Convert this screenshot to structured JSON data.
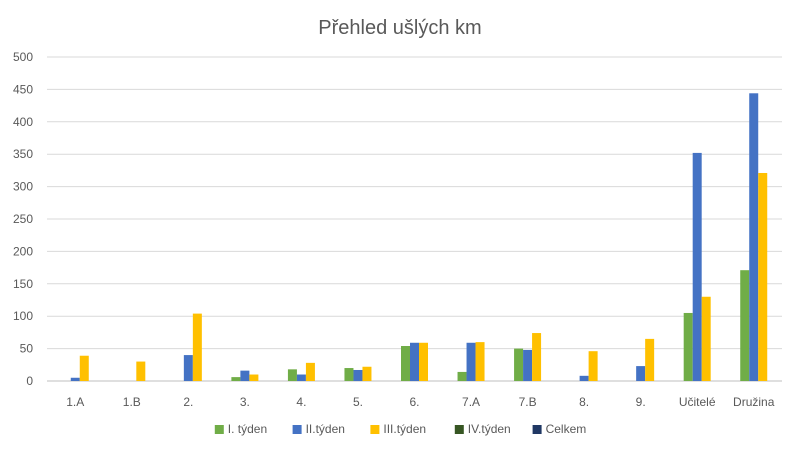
{
  "chart_data": {
    "type": "bar",
    "title": "Přehled ušlých km",
    "xlabel": "",
    "ylabel": "",
    "ylim": [
      0,
      500
    ],
    "yticks": [
      0,
      50,
      100,
      150,
      200,
      250,
      300,
      350,
      400,
      450,
      500
    ],
    "grid": true,
    "legend_position": "bottom",
    "categories": [
      "1.A",
      "1.B",
      "2.",
      "3.",
      "4.",
      "5.",
      "6.",
      "7.A",
      "7.B",
      "8.",
      "9.",
      "Učitelé",
      "Družina"
    ],
    "series": [
      {
        "name": "I. týden",
        "color": "#70ad47",
        "values": [
          0,
          0,
          0,
          6,
          18,
          20,
          54,
          14,
          50,
          0,
          0,
          105,
          171
        ]
      },
      {
        "name": "II.týden",
        "color": "#4472c4",
        "values": [
          5,
          0,
          40,
          16,
          10,
          17,
          59,
          59,
          48,
          8,
          23,
          352,
          444
        ]
      },
      {
        "name": "III.týden",
        "color": "#ffc000",
        "values": [
          39,
          30,
          104,
          10,
          28,
          22,
          59,
          60,
          74,
          46,
          65,
          130,
          321
        ]
      },
      {
        "name": "IV.týden",
        "color": "#375623",
        "values": [
          0,
          0,
          0,
          0,
          0,
          0,
          0,
          0,
          0,
          0,
          0,
          0,
          0
        ]
      },
      {
        "name": "Celkem",
        "color": "#203864",
        "values": [
          0,
          0,
          0,
          0,
          0,
          0,
          0,
          0,
          0,
          0,
          0,
          0,
          0
        ]
      }
    ]
  }
}
